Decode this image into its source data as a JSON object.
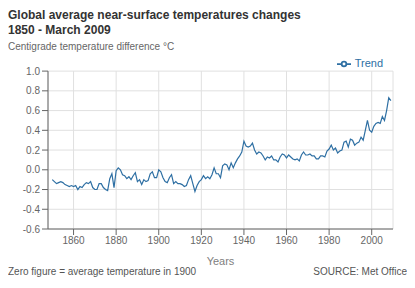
{
  "chart_data": {
    "type": "line",
    "title": "Global average near-surface temperatures changes",
    "subtitle": "1850 - March 2009",
    "ylabel": "Centigrade temperature difference °C",
    "xlabel": "Years",
    "annotations": [
      "Zero figure = average temperature in 1900",
      "SOURCE: Met Office"
    ],
    "legend": "upper right",
    "grid": true,
    "xlim": [
      1848,
      2010
    ],
    "xticks": [
      1860,
      1880,
      1900,
      1920,
      1940,
      1960,
      1980,
      2000
    ],
    "ylim": [
      -0.6,
      1.0
    ],
    "yticks": [
      -0.6,
      -0.4,
      -0.2,
      {
        "value": 0.0,
        "label": "0.0"
      },
      0.2,
      0.4,
      0.6,
      0.8,
      {
        "value": 1.0,
        "label": "1.0"
      }
    ],
    "x": [
      1850,
      1851,
      1852,
      1853,
      1854,
      1855,
      1856,
      1857,
      1858,
      1859,
      1860,
      1861,
      1862,
      1863,
      1864,
      1865,
      1866,
      1867,
      1868,
      1869,
      1870,
      1871,
      1872,
      1873,
      1874,
      1875,
      1876,
      1877,
      1878,
      1879,
      1880,
      1881,
      1882,
      1883,
      1884,
      1885,
      1886,
      1887,
      1888,
      1889,
      1890,
      1891,
      1892,
      1893,
      1894,
      1895,
      1896,
      1897,
      1898,
      1899,
      1900,
      1901,
      1902,
      1903,
      1904,
      1905,
      1906,
      1907,
      1908,
      1909,
      1910,
      1911,
      1912,
      1913,
      1914,
      1915,
      1916,
      1917,
      1918,
      1919,
      1920,
      1921,
      1922,
      1923,
      1924,
      1925,
      1926,
      1927,
      1928,
      1929,
      1930,
      1931,
      1932,
      1933,
      1934,
      1935,
      1936,
      1937,
      1938,
      1939,
      1940,
      1941,
      1942,
      1943,
      1944,
      1945,
      1946,
      1947,
      1948,
      1949,
      1950,
      1951,
      1952,
      1953,
      1954,
      1955,
      1956,
      1957,
      1958,
      1959,
      1960,
      1961,
      1962,
      1963,
      1964,
      1965,
      1966,
      1967,
      1968,
      1969,
      1970,
      1971,
      1972,
      1973,
      1974,
      1975,
      1976,
      1977,
      1978,
      1979,
      1980,
      1981,
      1982,
      1983,
      1984,
      1985,
      1986,
      1987,
      1988,
      1989,
      1990,
      1991,
      1992,
      1993,
      1994,
      1995,
      1996,
      1997,
      1998,
      1999,
      2000,
      2001,
      2002,
      2003,
      2004,
      2005,
      2006,
      2007,
      2008,
      2009
    ],
    "series": [
      {
        "name": "Trend",
        "color": "#2e6fa3",
        "values": [
          -0.1,
          -0.12,
          -0.14,
          -0.13,
          -0.12,
          -0.13,
          -0.15,
          -0.16,
          -0.17,
          -0.16,
          -0.17,
          -0.16,
          -0.2,
          -0.17,
          -0.18,
          -0.15,
          -0.13,
          -0.14,
          -0.12,
          -0.18,
          -0.2,
          -0.2,
          -0.14,
          -0.14,
          -0.18,
          -0.2,
          -0.21,
          -0.09,
          -0.04,
          -0.18,
          -0.01,
          0.02,
          0.0,
          -0.05,
          -0.06,
          -0.09,
          -0.07,
          -0.1,
          -0.06,
          -0.03,
          -0.12,
          -0.1,
          -0.15,
          -0.1,
          -0.12,
          -0.11,
          -0.04,
          -0.02,
          -0.08,
          -0.08,
          0.0,
          -0.02,
          -0.08,
          -0.12,
          -0.13,
          -0.08,
          -0.05,
          -0.14,
          -0.12,
          -0.14,
          -0.14,
          -0.15,
          -0.17,
          -0.16,
          -0.1,
          -0.06,
          -0.14,
          -0.22,
          -0.16,
          -0.12,
          -0.1,
          -0.06,
          -0.09,
          -0.07,
          -0.09,
          -0.05,
          0.02,
          -0.04,
          -0.04,
          -0.08,
          0.04,
          0.06,
          0.05,
          0.0,
          0.07,
          0.02,
          0.07,
          0.11,
          0.14,
          0.18,
          0.29,
          0.24,
          0.23,
          0.24,
          0.27,
          0.2,
          0.16,
          0.18,
          0.17,
          0.14,
          0.1,
          0.13,
          0.12,
          0.14,
          0.1,
          0.1,
          0.08,
          0.13,
          0.16,
          0.15,
          0.12,
          0.15,
          0.13,
          0.11,
          0.1,
          0.11,
          0.09,
          0.15,
          0.18,
          0.15,
          0.15,
          0.16,
          0.14,
          0.14,
          0.11,
          0.11,
          0.14,
          0.14,
          0.13,
          0.19,
          0.21,
          0.25,
          0.2,
          0.22,
          0.17,
          0.19,
          0.2,
          0.28,
          0.29,
          0.23,
          0.31,
          0.3,
          0.25,
          0.27,
          0.28,
          0.33,
          0.3,
          0.4,
          0.5,
          0.4,
          0.38,
          0.44,
          0.47,
          0.48,
          0.47,
          0.54,
          0.5,
          0.6,
          0.73,
          0.7
        ]
      }
    ]
  }
}
